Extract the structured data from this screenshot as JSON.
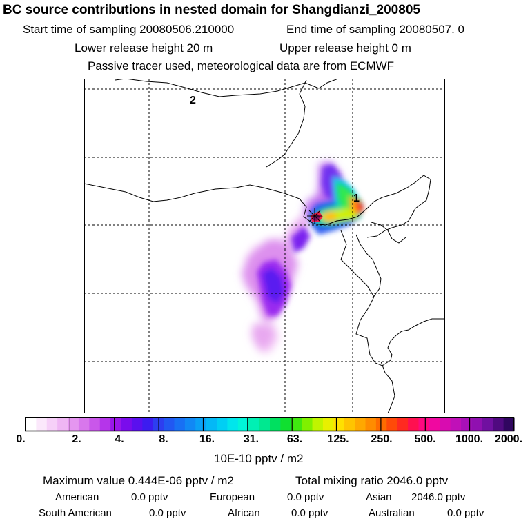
{
  "title": "BC  source contributions in nested domain for Shangdianzi_200805",
  "header": {
    "start": "Start time of sampling 20080506.210000",
    "end": "End time of sampling 20080507.     0",
    "lower": "Lower release height   20 m",
    "upper": "Upper release height    0 m",
    "tracer": "Passive tracer used, meteorological data are from ECMWF"
  },
  "map": {
    "markers": [
      "1",
      "2"
    ],
    "colors": {
      "frame": "#000000",
      "coast": "#000000",
      "grid": "#000000"
    }
  },
  "colorbar": {
    "ticks": [
      "0.",
      "2.",
      "4.",
      "8.",
      "16.",
      "31.",
      "63.",
      "125.",
      "250.",
      "500.",
      "1000.",
      "2000."
    ],
    "unit": "10E-10 pptv / m2",
    "colors": [
      "#ffffff",
      "#fbe8fb",
      "#f6d0f8",
      "#efb6f4",
      "#e596f0",
      "#d877ec",
      "#c957ea",
      "#b535ea",
      "#9a16ea",
      "#7a0cec",
      "#5a10ee",
      "#3c1cf0",
      "#2d3ef0",
      "#2158f2",
      "#1870f4",
      "#1188f5",
      "#0aa0f6",
      "#04b8f6",
      "#00cff4",
      "#00e6ec",
      "#00f5da",
      "#00f0b4",
      "#00e890",
      "#00e060",
      "#10e030",
      "#40e810",
      "#80f000",
      "#c0f400",
      "#e8f000",
      "#ffe000",
      "#ffc400",
      "#ffa800",
      "#ff8c00",
      "#ff6c00",
      "#ff4a08",
      "#ff2a20",
      "#ff1050",
      "#ff0880",
      "#f008a0",
      "#d80cb0",
      "#c010b8",
      "#a810b8",
      "#9010b0",
      "#7010a0",
      "#500a80",
      "#300660"
    ]
  },
  "summary": {
    "max": "Maximum value  0.444E-06 pptv / m2",
    "total": "Total mixing ratio     2046.0 pptv",
    "regions": [
      {
        "name": "American",
        "value": "0.0 pptv"
      },
      {
        "name": "European",
        "value": "0.0 pptv"
      },
      {
        "name": "Asian",
        "value": "2046.0 pptv"
      },
      {
        "name": "South American",
        "value": "0.0 pptv"
      },
      {
        "name": "African",
        "value": "0.0 pptv"
      },
      {
        "name": "Australian",
        "value": "0.0 pptv"
      }
    ]
  }
}
